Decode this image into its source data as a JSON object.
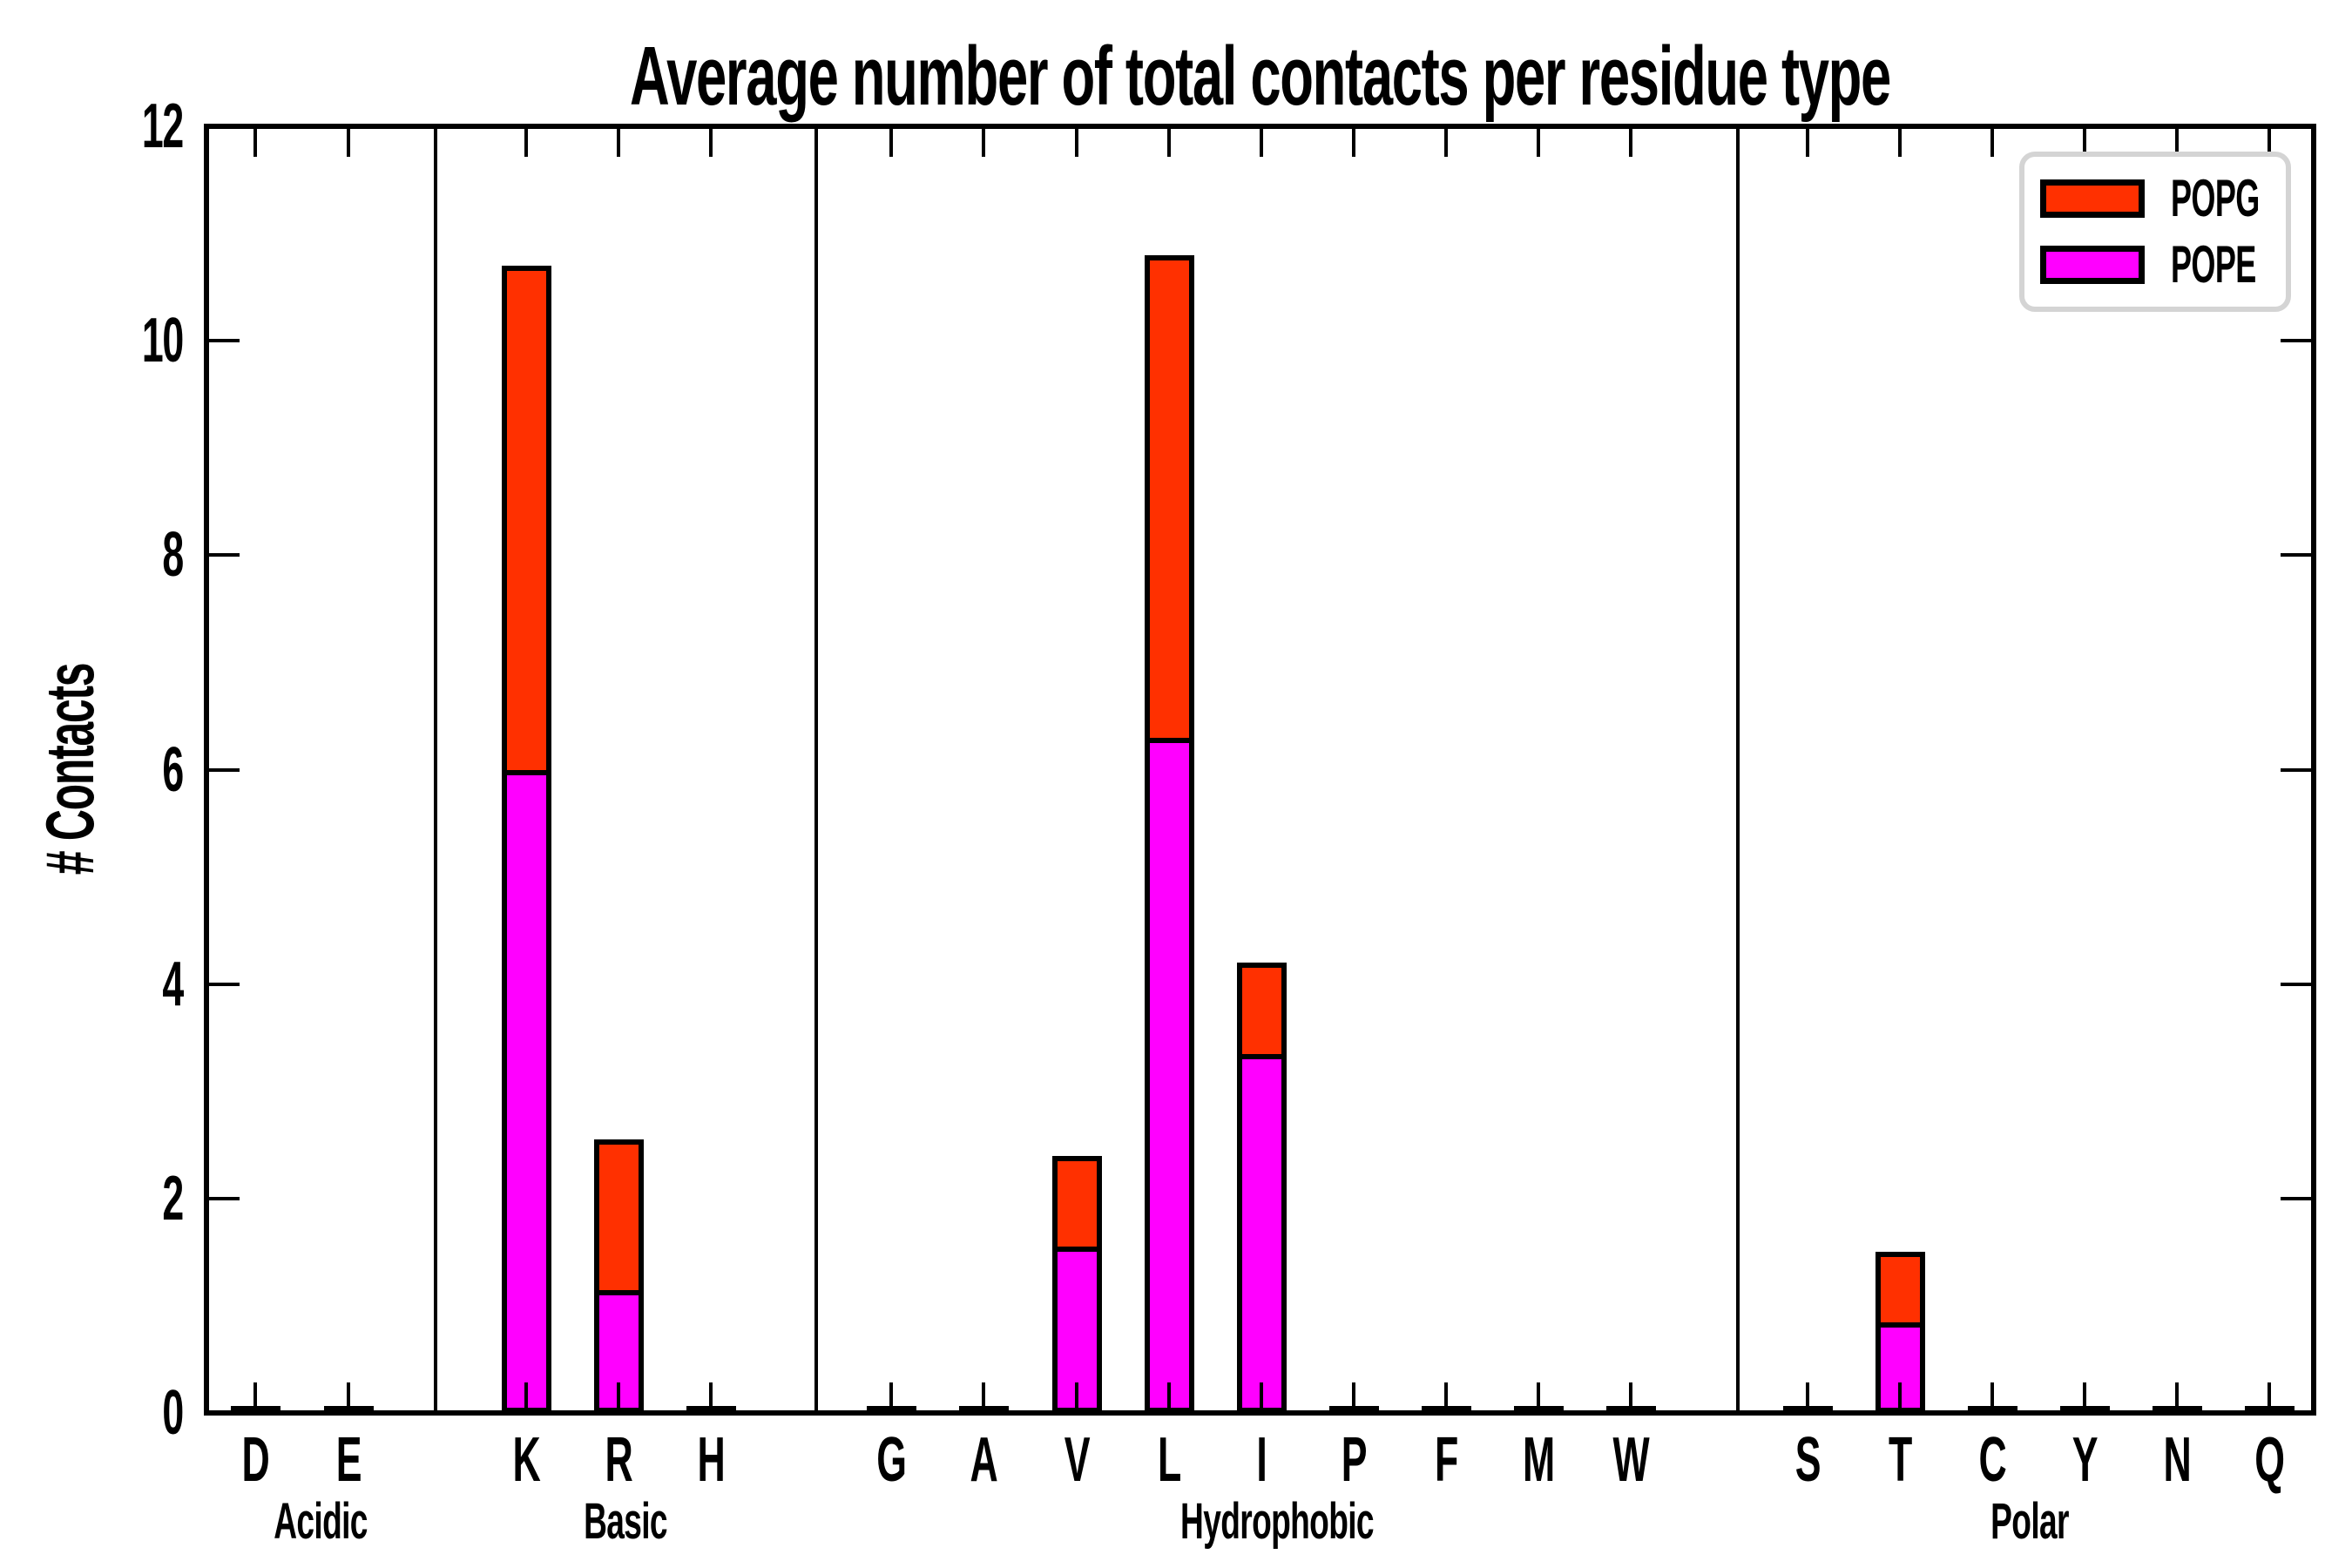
{
  "chart_data": {
    "type": "bar",
    "stacked": true,
    "title": "Average number of total contacts per residue type",
    "xlabel": "",
    "ylabel": "# Contacts",
    "ylim": [
      0,
      12
    ],
    "yticks": [
      0,
      2,
      4,
      6,
      8,
      10,
      12
    ],
    "grid": false,
    "background": "#ffffff",
    "legend": {
      "position": "upper right",
      "entries": [
        {
          "label": "POPG",
          "color": "#ff3000"
        },
        {
          "label": "POPE",
          "color": "#ff00ff"
        }
      ]
    },
    "groups": [
      {
        "label": "Acidic",
        "categories": [
          "D",
          "E"
        ]
      },
      {
        "label": "Basic",
        "categories": [
          "K",
          "R",
          "H"
        ]
      },
      {
        "label": "Hydrophobic",
        "categories": [
          "G",
          "A",
          "V",
          "L",
          "I",
          "P",
          "F",
          "M",
          "W"
        ]
      },
      {
        "label": "Polar",
        "categories": [
          "S",
          "T",
          "C",
          "Y",
          "N",
          "Q"
        ]
      }
    ],
    "series": [
      {
        "name": "POPE",
        "color": "#ff00ff",
        "values": {
          "D": 0,
          "E": 0,
          "K": 5.95,
          "R": 1.1,
          "H": 0,
          "G": 0,
          "A": 0,
          "V": 1.5,
          "L": 6.25,
          "I": 3.3,
          "P": 0,
          "F": 0,
          "M": 0,
          "W": 0,
          "S": 0,
          "T": 0.8,
          "C": 0,
          "Y": 0,
          "N": 0,
          "Q": 0
        }
      },
      {
        "name": "POPG",
        "color": "#ff3000",
        "values": {
          "D": 0,
          "E": 0,
          "K": 4.75,
          "R": 1.45,
          "H": 0,
          "G": 0,
          "A": 0,
          "V": 0.9,
          "L": 4.55,
          "I": 0.9,
          "P": 0,
          "F": 0,
          "M": 0,
          "W": 0,
          "S": 0,
          "T": 0.7,
          "C": 0,
          "Y": 0,
          "N": 0,
          "Q": 0
        }
      }
    ]
  }
}
